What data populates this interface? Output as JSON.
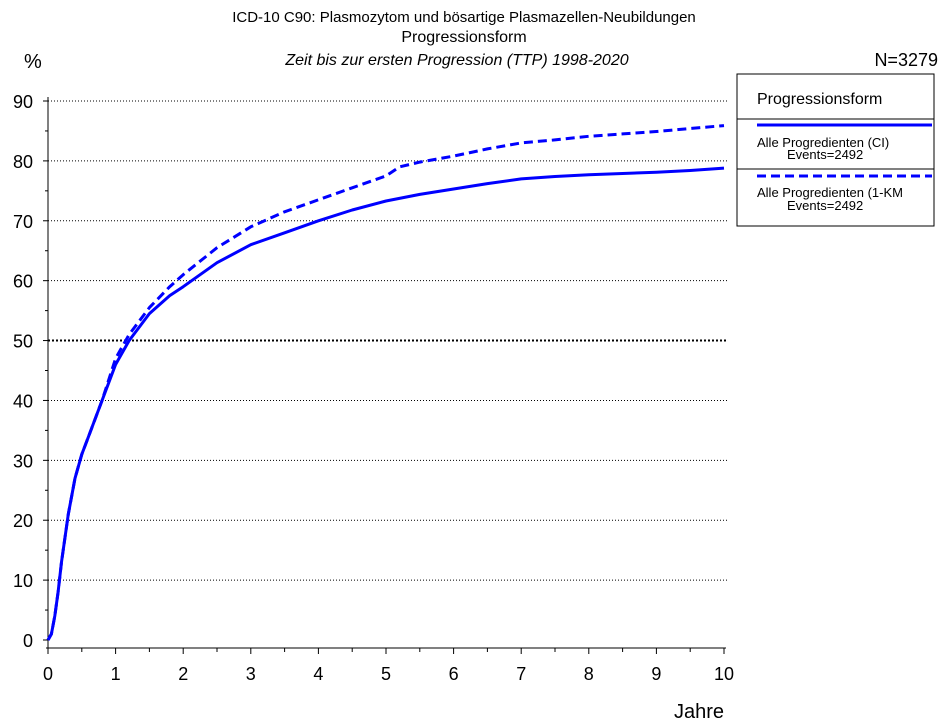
{
  "header": {
    "title_line1": "ICD-10 C90: Plasmozytom und bösartige Plasmazellen-Neubildungen",
    "title_line2": "Progressionsform",
    "title_line3": "Zeit bis zur ersten Progression (TTP) 1998-2020",
    "n_label": "N=3279",
    "y_unit": "%"
  },
  "legend": {
    "title": "Progressionsform",
    "entries": [
      {
        "label": "Alle Progredienten (CI)",
        "events": "Events=2492",
        "style": "solid"
      },
      {
        "label": "Alle Progredienten (1-KM",
        "events": "Events=2492",
        "style": "dashed"
      }
    ]
  },
  "chart_data": {
    "type": "line",
    "xlabel": "Jahre",
    "ylabel": "%",
    "xlim": [
      0,
      10
    ],
    "ylim": [
      0,
      90
    ],
    "x_ticks": [
      "0",
      "1",
      "2",
      "3",
      "4",
      "5",
      "6",
      "7",
      "8",
      "9",
      "10"
    ],
    "y_ticks": [
      "0",
      "10",
      "20",
      "30",
      "40",
      "50",
      "60",
      "70",
      "80",
      "90"
    ],
    "reference_line_y": 50,
    "grid": true,
    "color": "#0000ff",
    "series": [
      {
        "name": "Alle Progredienten (CI)",
        "style": "solid",
        "x": [
          0,
          0.05,
          0.1,
          0.15,
          0.2,
          0.3,
          0.4,
          0.5,
          0.6,
          0.8,
          1.0,
          1.2,
          1.5,
          1.8,
          2.0,
          2.5,
          3.0,
          3.5,
          4.0,
          4.5,
          5.0,
          5.5,
          6.0,
          6.5,
          7.0,
          7.5,
          8.0,
          8.5,
          9.0,
          9.5,
          10.0
        ],
        "y": [
          0,
          1,
          4,
          8,
          13,
          21,
          27,
          31,
          34,
          40,
          46,
          50,
          54.5,
          57.5,
          59,
          63,
          66,
          68,
          70,
          71.8,
          73.3,
          74.4,
          75.3,
          76.2,
          77,
          77.4,
          77.7,
          77.9,
          78.1,
          78.4,
          78.8
        ]
      },
      {
        "name": "Alle Progredienten (1-KM",
        "style": "dashed",
        "x": [
          0,
          0.05,
          0.1,
          0.15,
          0.2,
          0.3,
          0.4,
          0.5,
          0.6,
          0.8,
          1.0,
          1.2,
          1.5,
          1.8,
          2.0,
          2.5,
          3.0,
          3.5,
          4.0,
          4.5,
          5.0,
          5.2,
          5.5,
          6.0,
          6.5,
          7.0,
          7.5,
          8.0,
          8.5,
          9.0,
          9.5,
          10.0
        ],
        "y": [
          0,
          1,
          4,
          8,
          13,
          21,
          27,
          31,
          34,
          40,
          47,
          51,
          55.5,
          59,
          61,
          65.5,
          69,
          71.5,
          73.5,
          75.5,
          77.5,
          79,
          79.8,
          80.8,
          82,
          83,
          83.5,
          84.1,
          84.5,
          84.9,
          85.4,
          85.9
        ]
      }
    ]
  }
}
